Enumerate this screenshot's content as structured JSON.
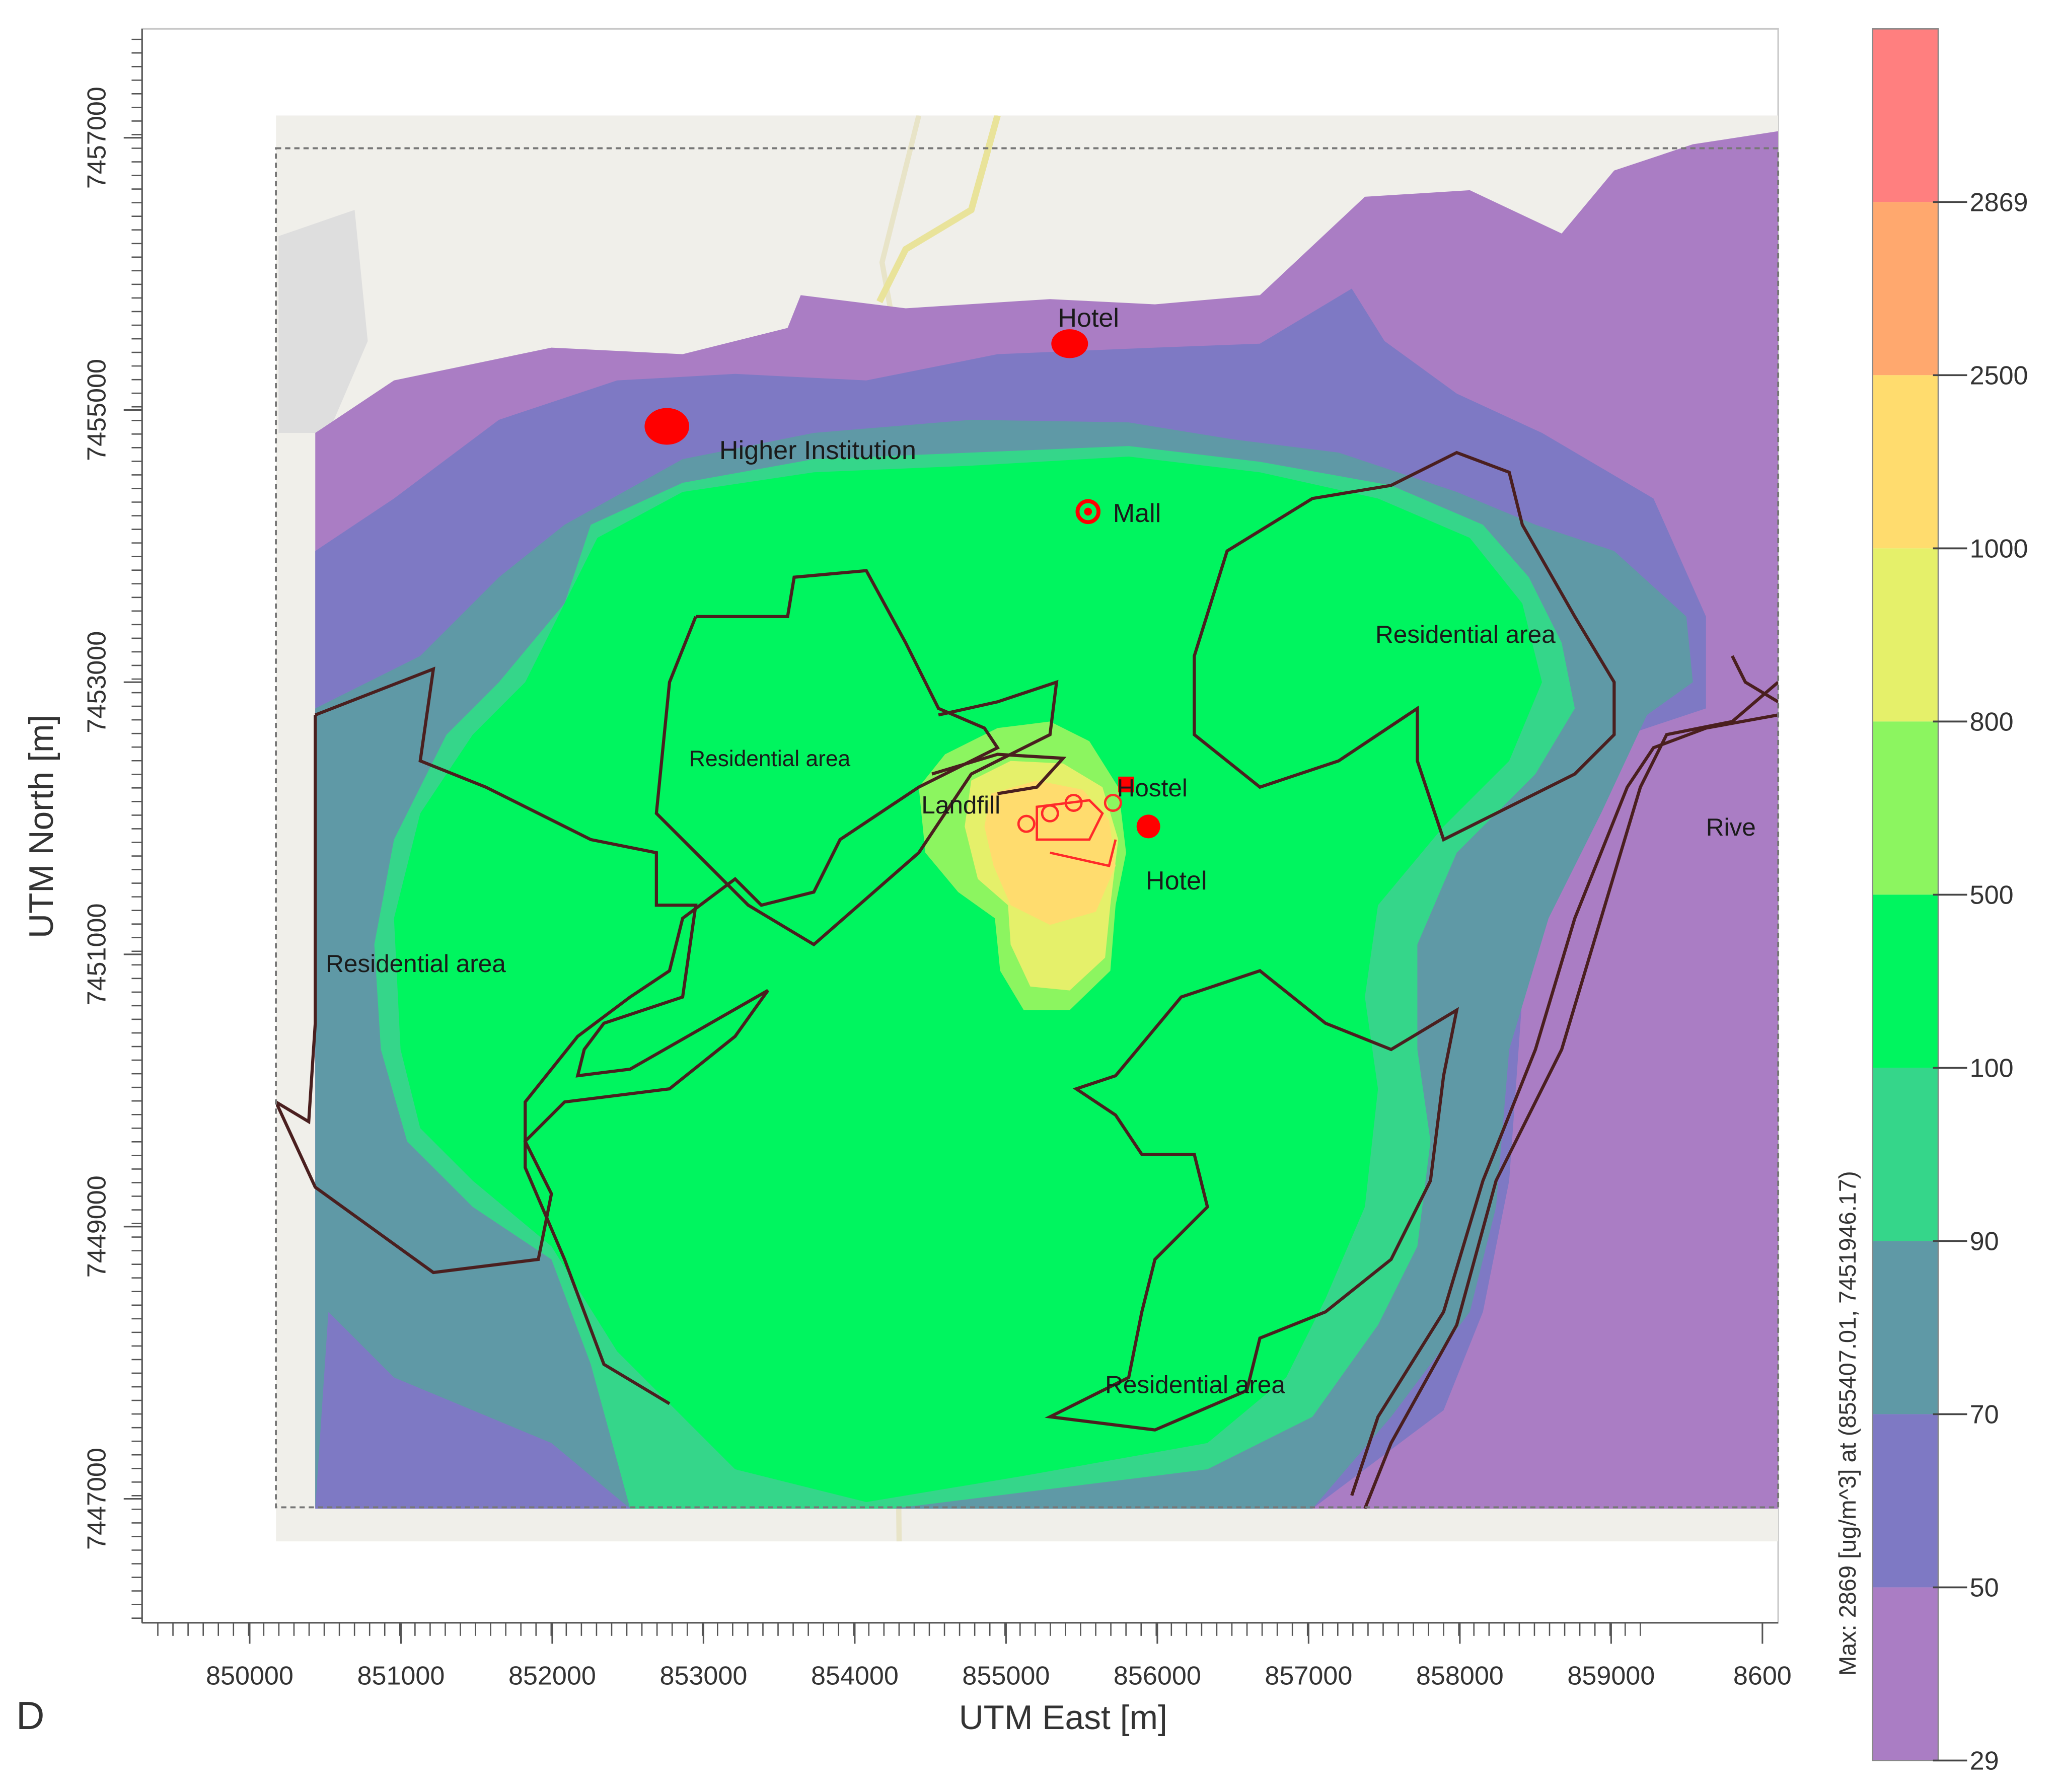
{
  "panel_letter": "D",
  "x_axis": {
    "title": "UTM East [m]",
    "ticks": [
      "850000",
      "851000",
      "852000",
      "853000",
      "854000",
      "855000",
      "856000",
      "857000",
      "858000",
      "859000",
      "8600"
    ]
  },
  "y_axis": {
    "title": "UTM North [m]",
    "ticks": [
      "7457000",
      "7455000",
      "7453000",
      "7451000",
      "7449000",
      "7447000"
    ]
  },
  "colorbar": {
    "caption": "Max:  2869  [ug/m^3]  at  (855407.01, 7451946.17)",
    "ticks": [
      "2869",
      "2500",
      "1000",
      "800",
      "500",
      "100",
      "90",
      "70",
      "50",
      "29"
    ],
    "colors": [
      "#ff7f7f",
      "#ffa86e",
      "#ffdc6e",
      "#e5f06a",
      "#8cf560",
      "#00f55f",
      "#35d68a",
      "#5f99a6",
      "#7e79c4",
      "#aa7dc4"
    ]
  },
  "places": {
    "hotel_north": "Hotel",
    "higher_institution": "Higher Institution",
    "mall": "Mall",
    "residential_ne": "Residential area",
    "residential_center": "Residential area",
    "landfill": "Landfill",
    "hostel": "Hostel",
    "hotel_center": "Hotel",
    "river": "Rive",
    "residential_west": "Residential area",
    "residential_south": "Residential area"
  }
}
